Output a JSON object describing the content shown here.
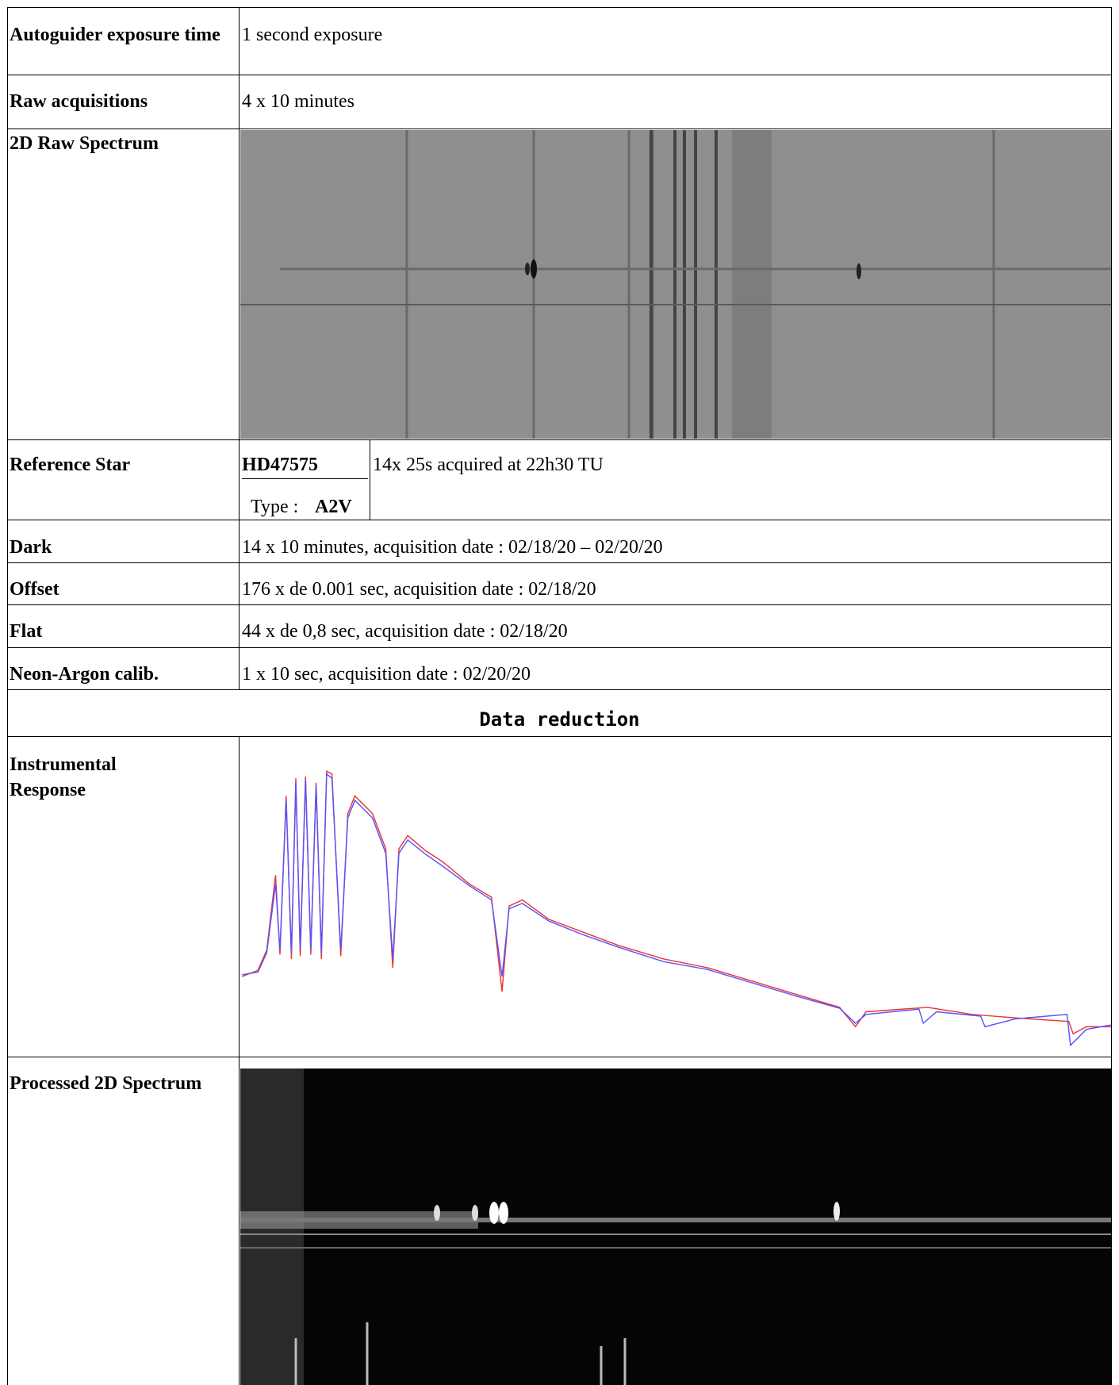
{
  "rows": [
    {
      "label": "Autoguider exposure time",
      "value": "1 second exposure"
    },
    {
      "label": "Raw acquisitions",
      "value": "4 x 10 minutes"
    },
    {
      "label": "2D Raw Spectrum"
    },
    {
      "label": "Reference Star",
      "star": "HD47575",
      "type_label": "Type :",
      "type_value": "A2V",
      "value": "14x 25s acquired at 22h30 TU"
    },
    {
      "label": "Dark",
      "value": "14 x 10 minutes, acquisition date : 02/18/20 – 02/20/20"
    },
    {
      "label": "Offset",
      "value": "176 x de 0.001 sec, acquisition date : 02/18/20"
    },
    {
      "label": "Flat",
      "value": "44 x de 0,8 sec, acquisition date : 02/18/20"
    },
    {
      "label": "Neon-Argon calib.",
      "value": "1 x 10 sec, acquisition date : 02/20/20"
    },
    {
      "section": "Data reduction"
    },
    {
      "label": "Instrumental Response"
    },
    {
      "label": "Processed 2D Spectrum"
    }
  ]
}
